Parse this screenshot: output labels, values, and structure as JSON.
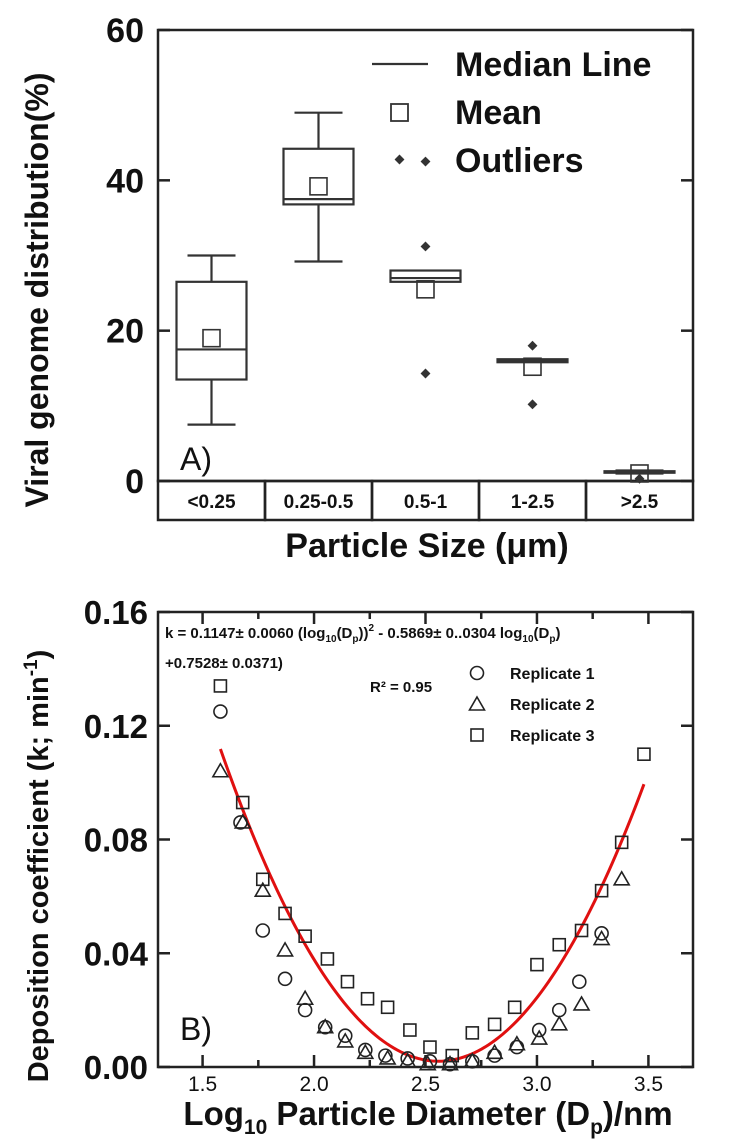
{
  "chart_data": [
    {
      "type": "box",
      "panel_label": "A)",
      "xlabel": "Particle Size (μm)",
      "ylabel": "Viral genome distribution(%)",
      "ylim": [
        0,
        60
      ],
      "yticks": [
        "0",
        "20",
        "40",
        "60"
      ],
      "categories": [
        "<0.25",
        "0.25-0.5",
        "0.5-1",
        "1-2.5",
        ">2.5"
      ],
      "boxes": [
        {
          "category": "<0.25",
          "whisker_low": 7.5,
          "q1": 13.5,
          "median": 17.5,
          "q3": 26.5,
          "whisker_high": 30,
          "mean": 19,
          "outliers": []
        },
        {
          "category": "0.25-0.5",
          "whisker_low": 29.2,
          "q1": 36.8,
          "median": 37.5,
          "q3": 44.2,
          "whisker_high": 49,
          "mean": 39.2,
          "outliers": []
        },
        {
          "category": "0.5-1",
          "whisker_low": 26.5,
          "q1": 26.5,
          "median": 27,
          "q3": 28,
          "whisker_high": 28,
          "mean": 25.5,
          "outliers": [
            42.5,
            31.2,
            14.3
          ]
        },
        {
          "category": "1-2.5",
          "whisker_low": 15.8,
          "q1": 15.8,
          "median": 16,
          "q3": 16.2,
          "whisker_high": 16.2,
          "mean": 15.2,
          "outliers": [
            18,
            10.2
          ]
        },
        {
          "category": ">2.5",
          "whisker_low": 1,
          "q1": 1.1,
          "median": 1.2,
          "q3": 1.3,
          "whisker_high": 1.4,
          "mean": 1.0,
          "outliers": [
            0.3
          ]
        }
      ],
      "legend": [
        {
          "key": "median",
          "label": "Median Line"
        },
        {
          "key": "mean",
          "label": "Mean"
        },
        {
          "key": "outlier",
          "label": "Outliers"
        }
      ]
    },
    {
      "type": "scatter",
      "panel_label": "B)",
      "xlabel_main": "Log",
      "xlabel_sub": "10",
      "xlabel_rest": " Particle Diameter (D",
      "xlabel_sub2": "p",
      "xlabel_end": ")/nm",
      "ylabel_main": "Deposition coefficient (k; min",
      "ylabel_sup": "-1",
      "ylabel_end": ")",
      "xlim": [
        1.3,
        3.7
      ],
      "ylim": [
        0,
        0.16
      ],
      "xticks": [
        "1.5",
        "2.0",
        "2.5",
        "3.0",
        "3.5"
      ],
      "yticks": [
        "0.00",
        "0.04",
        "0.08",
        "0.12",
        "0.16"
      ],
      "equation": {
        "line1_a": "k = 0.1147± 0.0060 (log",
        "line1_sub1": "10",
        "line1_b": "(D",
        "line1_sub2": "p",
        "line1_c": "))",
        "line1_sup": "2",
        "line1_d": " - 0.5869± 0..0304 log",
        "line1_sub3": "10",
        "line1_e": "(D",
        "line1_sub4": "p",
        "line1_f": ")",
        "line2": "+0.7528± 0.0371)"
      },
      "r2": "R² = 0.95",
      "fit": {
        "a": 0.1147,
        "b": -0.5869,
        "c": 0.7528,
        "x_range": [
          1.58,
          3.48
        ],
        "color": "#e01010"
      },
      "series": [
        {
          "name": "Replicate 1",
          "marker": "circle",
          "x": [
            1.58,
            1.67,
            1.77,
            1.87,
            1.96,
            2.05,
            2.14,
            2.23,
            2.32,
            2.42,
            2.52,
            2.61,
            2.71,
            2.81,
            2.91,
            3.01,
            3.1,
            3.19,
            3.29
          ],
          "y": [
            0.125,
            0.086,
            0.048,
            0.031,
            0.02,
            0.014,
            0.011,
            0.006,
            0.004,
            0.003,
            0.002,
            0.001,
            0.002,
            0.004,
            0.007,
            0.013,
            0.02,
            0.03,
            0.047
          ]
        },
        {
          "name": "Replicate 2",
          "marker": "triangle",
          "x": [
            1.58,
            1.68,
            1.77,
            1.87,
            1.96,
            2.05,
            2.14,
            2.23,
            2.33,
            2.42,
            2.51,
            2.61,
            2.71,
            2.81,
            2.91,
            3.01,
            3.1,
            3.2,
            3.29,
            3.38
          ],
          "y": [
            0.104,
            0.086,
            0.062,
            0.041,
            0.024,
            0.014,
            0.009,
            0.005,
            0.003,
            0.002,
            0.001,
            0.001,
            0.002,
            0.005,
            0.008,
            0.01,
            0.015,
            0.022,
            0.045,
            0.066
          ]
        },
        {
          "name": "Replicate 3",
          "marker": "square",
          "x": [
            1.58,
            1.68,
            1.77,
            1.87,
            1.96,
            2.06,
            2.15,
            2.24,
            2.33,
            2.43,
            2.52,
            2.62,
            2.71,
            2.81,
            2.9,
            3.0,
            3.1,
            3.2,
            3.29,
            3.38,
            3.48
          ],
          "y": [
            0.134,
            0.093,
            0.066,
            0.054,
            0.046,
            0.038,
            0.03,
            0.024,
            0.021,
            0.013,
            0.007,
            0.004,
            0.012,
            0.015,
            0.021,
            0.036,
            0.043,
            0.048,
            0.062,
            0.079,
            0.11
          ]
        }
      ]
    }
  ]
}
